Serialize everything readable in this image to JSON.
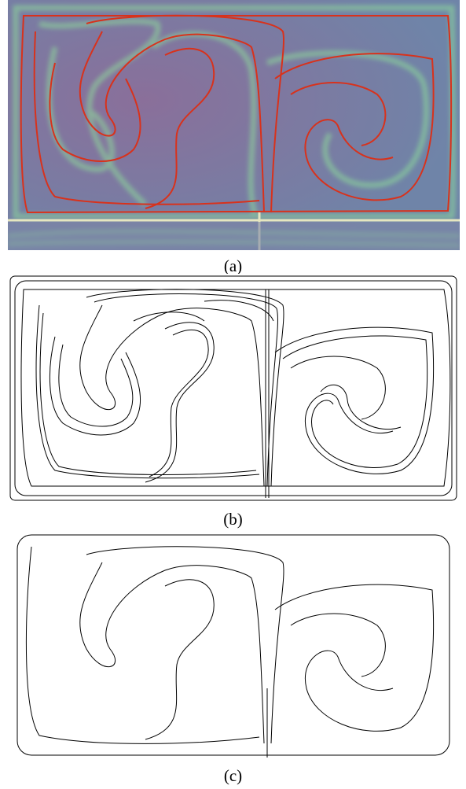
{
  "figure": {
    "captions": [
      "(a)",
      "(b)",
      "(c)"
    ]
  },
  "colors": {
    "field_background": "#7a7fa4",
    "ridge_highlight": "#8fe09a",
    "ridge_line": "#d8321c",
    "line_drawing": "#000000",
    "paper": "#ffffff"
  },
  "panels": [
    {
      "id": "a",
      "style": "heat-map with ridges"
    },
    {
      "id": "b",
      "style": "dense black line traces"
    },
    {
      "id": "c",
      "style": "sparse black line traces"
    }
  ]
}
